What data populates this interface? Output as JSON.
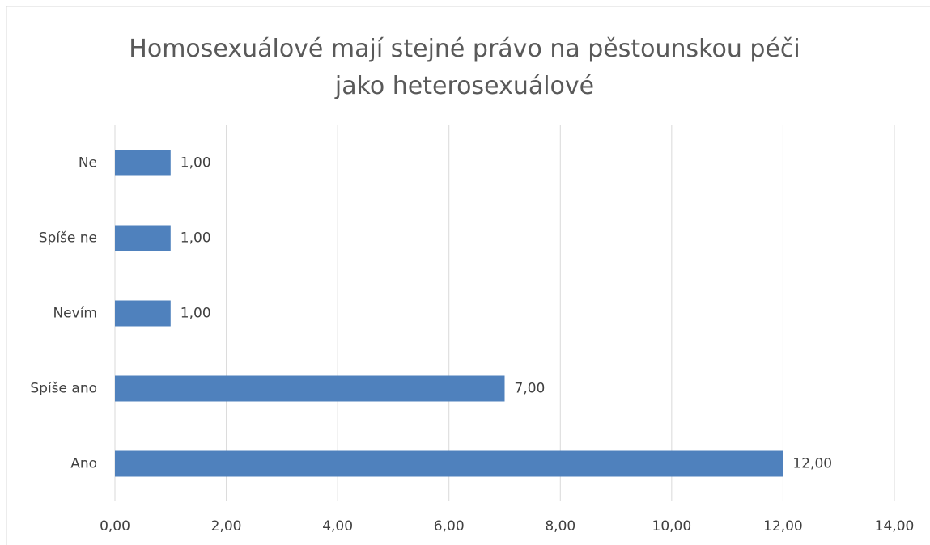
{
  "chart_data": {
    "type": "bar",
    "orientation": "horizontal",
    "title": "Homosexuálové mají stejné právo na pěstounskou péči jako heterosexuálové",
    "categories": [
      "Ne",
      "Spíše ne",
      "Nevím",
      "Spíše ano",
      "Ano"
    ],
    "values": [
      1,
      1,
      1,
      7,
      12
    ],
    "value_labels": [
      "1,00",
      "1,00",
      "1,00",
      "7,00",
      "12,00"
    ],
    "color": "#4f81bd",
    "xlim": [
      0,
      14
    ],
    "xticks": [
      {
        "value": 0,
        "label": "0,00"
      },
      {
        "value": 2,
        "label": "2,00"
      },
      {
        "value": 4,
        "label": "4,00"
      },
      {
        "value": 6,
        "label": "6,00"
      },
      {
        "value": 8,
        "label": "8,00"
      },
      {
        "value": 10,
        "label": "10,00"
      },
      {
        "value": 12,
        "label": "12,00"
      },
      {
        "value": 14,
        "label": "14,00"
      }
    ],
    "grid": true
  }
}
